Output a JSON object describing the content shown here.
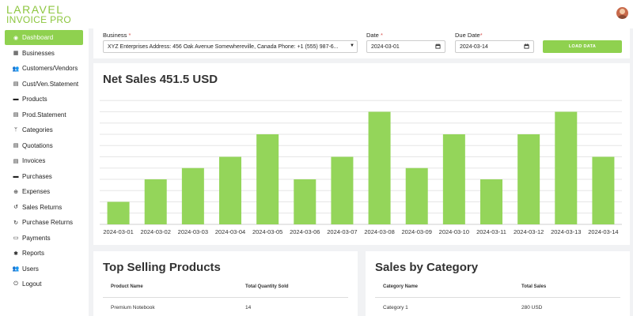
{
  "app": {
    "logo_line1": "LARAVEL",
    "logo_line2": "INVOICE PRO"
  },
  "sidebar": {
    "items": [
      {
        "label": "Dashboard",
        "icon": "dashboard-icon",
        "active": true
      },
      {
        "label": "Businesses",
        "icon": "building-icon"
      },
      {
        "label": "Customers/Vendors",
        "icon": "users-icon"
      },
      {
        "label": "Cust/Ven.Statement",
        "icon": "file-icon"
      },
      {
        "label": "Products",
        "icon": "box-icon"
      },
      {
        "label": "Prod.Statement",
        "icon": "file-icon"
      },
      {
        "label": "Categories",
        "icon": "branch-icon"
      },
      {
        "label": "Quotations",
        "icon": "file-icon"
      },
      {
        "label": "Invoices",
        "icon": "file-icon"
      },
      {
        "label": "Purchases",
        "icon": "box-icon"
      },
      {
        "label": "Expenses",
        "icon": "search-icon"
      },
      {
        "label": "Sales Returns",
        "icon": "undo-icon"
      },
      {
        "label": "Purchase Returns",
        "icon": "redo-icon"
      },
      {
        "label": "Payments",
        "icon": "card-icon"
      },
      {
        "label": "Reports",
        "icon": "gear-icon"
      },
      {
        "label": "Users",
        "icon": "users-icon"
      },
      {
        "label": "Logout",
        "icon": "power-icon"
      }
    ]
  },
  "filter": {
    "business_label": "Business",
    "business_value": "XYZ Enterprises Address: 456 Oak Avenue Somewhereville, Canada Phone: +1 (555) 987-6...",
    "date_label": "Date",
    "date_value": "2024-03-01",
    "due_label": "Due Date",
    "due_value": "2024-03-14",
    "load_button": "LOAD DATA",
    "required_mark": "*"
  },
  "chart_title": "Net Sales 451.5 USD",
  "chart_data": {
    "type": "bar",
    "title": "Net Sales 451.5 USD",
    "categories": [
      "2024-03-01",
      "2024-03-02",
      "2024-03-03",
      "2024-03-04",
      "2024-03-05",
      "2024-03-06",
      "2024-03-07",
      "2024-03-08",
      "2024-03-09",
      "2024-03-10",
      "2024-03-11",
      "2024-03-12",
      "2024-03-13",
      "2024-03-14"
    ],
    "values": [
      1,
      2,
      2.5,
      3,
      4,
      2,
      3,
      5,
      2.5,
      4,
      2,
      4,
      5,
      3
    ],
    "ylim": [
      0,
      5.5
    ],
    "grid": true,
    "bar_color": "#94d55a"
  },
  "top_products": {
    "title": "Top Selling Products",
    "columns": [
      "Product Name",
      "Total Quantity Sold"
    ],
    "rows": [
      [
        "Premium Notebook",
        "14"
      ]
    ]
  },
  "sales_category": {
    "title": "Sales by Category",
    "columns": [
      "Category Name",
      "Total Sales"
    ],
    "rows": [
      [
        "Category 1",
        "280 USD"
      ]
    ]
  }
}
